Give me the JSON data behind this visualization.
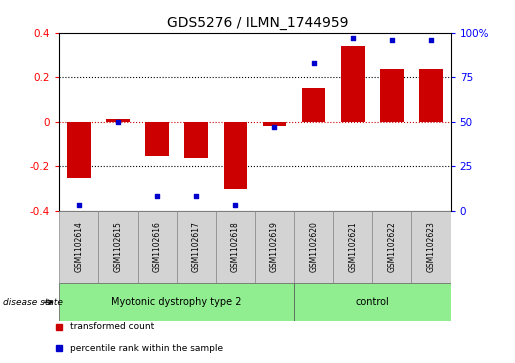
{
  "title": "GDS5276 / ILMN_1744959",
  "samples": [
    "GSM1102614",
    "GSM1102615",
    "GSM1102616",
    "GSM1102617",
    "GSM1102618",
    "GSM1102619",
    "GSM1102620",
    "GSM1102621",
    "GSM1102622",
    "GSM1102623"
  ],
  "transformed_counts": [
    -0.255,
    0.01,
    -0.155,
    -0.165,
    -0.305,
    -0.02,
    0.15,
    0.34,
    0.235,
    0.235
  ],
  "percentile_ranks": [
    3,
    50,
    8,
    8,
    3,
    47,
    83,
    97,
    96,
    96
  ],
  "ylim_left": [
    -0.4,
    0.4
  ],
  "ylim_right": [
    0,
    100
  ],
  "yticks_left": [
    -0.4,
    -0.2,
    0.0,
    0.2,
    0.4
  ],
  "yticks_right": [
    0,
    25,
    50,
    75,
    100
  ],
  "ytick_labels_right": [
    "0",
    "25",
    "50",
    "75",
    "100%"
  ],
  "bar_color": "#cc0000",
  "dot_color": "#0000cc",
  "group1_label": "Myotonic dystrophy type 2",
  "group2_label": "control",
  "group1_indices": [
    0,
    1,
    2,
    3,
    4,
    5
  ],
  "group2_indices": [
    6,
    7,
    8,
    9
  ],
  "group1_color": "#90ee90",
  "group2_color": "#90ee90",
  "disease_state_label": "disease state",
  "legend_bar_label": "transformed count",
  "legend_dot_label": "percentile rank within the sample",
  "background_color": "#ffffff",
  "plot_bg_color": "#ffffff",
  "label_area_color": "#d3d3d3",
  "hline_color": "#cc0000",
  "dotted_line_color": "#000000"
}
